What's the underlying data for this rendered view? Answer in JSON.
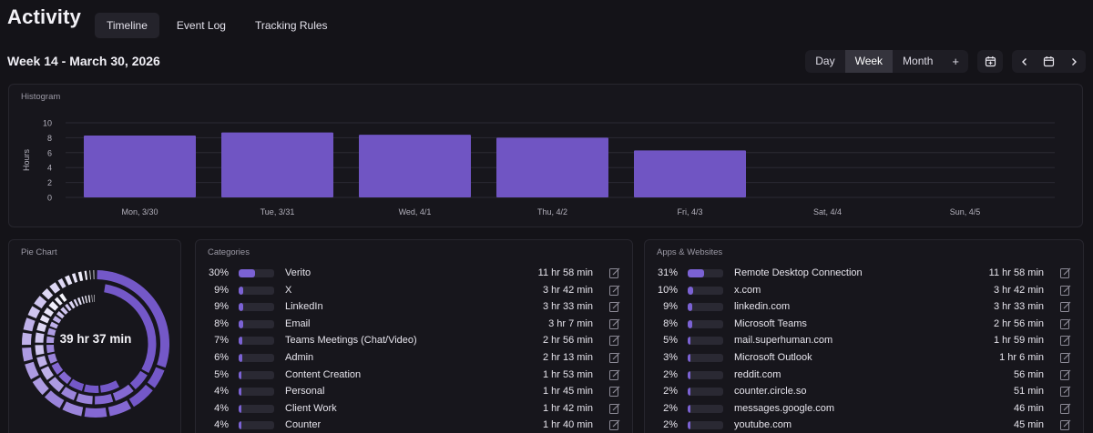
{
  "app": {
    "title": "Activity",
    "tabs": [
      {
        "label": "Timeline",
        "active": true
      },
      {
        "label": "Event Log",
        "active": false
      },
      {
        "label": "Tracking Rules",
        "active": false
      }
    ]
  },
  "header": {
    "week_title": "Week 14 - March 30, 2026",
    "ranges": [
      {
        "label": "Day",
        "active": false
      },
      {
        "label": "Week",
        "active": true
      },
      {
        "label": "Month",
        "active": false
      }
    ],
    "add_label": "+",
    "icons": [
      "calendar-add-icon",
      "chevron-left-icon",
      "calendar-icon",
      "chevron-right-icon"
    ]
  },
  "histogram": {
    "title": "Histogram"
  },
  "chart_data": {
    "type": "bar",
    "categories": [
      "Mon, 3/30",
      "Tue, 3/31",
      "Wed, 4/1",
      "Thu, 4/2",
      "Fri, 4/3",
      "Sat, 4/4",
      "Sun, 4/5"
    ],
    "values": [
      8.3,
      8.7,
      8.4,
      8.0,
      6.3,
      0,
      0
    ],
    "ylabel": "Hours",
    "ylim": [
      0,
      10
    ],
    "yticks": [
      0,
      2,
      4,
      6,
      8,
      10
    ],
    "grid": true,
    "color": "#7055c3"
  },
  "pie": {
    "title": "Pie Chart",
    "total": "39 hr 37 min"
  },
  "categories": {
    "title": "Categories",
    "rows": [
      {
        "pct": "30%",
        "value": 30,
        "name": "Verito",
        "duration": "11 hr 58 min"
      },
      {
        "pct": "9%",
        "value": 9,
        "name": "X",
        "duration": "3 hr 42 min"
      },
      {
        "pct": "9%",
        "value": 9,
        "name": "LinkedIn",
        "duration": "3 hr 33 min"
      },
      {
        "pct": "8%",
        "value": 8,
        "name": "Email",
        "duration": "3 hr 7 min"
      },
      {
        "pct": "7%",
        "value": 7,
        "name": "Teams Meetings (Chat/Video)",
        "duration": "2 hr 56 min"
      },
      {
        "pct": "6%",
        "value": 6,
        "name": "Admin",
        "duration": "2 hr 13 min"
      },
      {
        "pct": "5%",
        "value": 5,
        "name": "Content Creation",
        "duration": "1 hr 53 min"
      },
      {
        "pct": "4%",
        "value": 4,
        "name": "Personal",
        "duration": "1 hr 45 min"
      },
      {
        "pct": "4%",
        "value": 4,
        "name": "Client Work",
        "duration": "1 hr 42 min"
      },
      {
        "pct": "4%",
        "value": 4,
        "name": "Counter",
        "duration": "1 hr 40 min"
      }
    ]
  },
  "apps": {
    "title": "Apps & Websites",
    "rows": [
      {
        "pct": "31%",
        "value": 31,
        "name": "Remote Desktop Connection",
        "duration": "11 hr 58 min"
      },
      {
        "pct": "10%",
        "value": 10,
        "name": "x.com",
        "duration": "3 hr 42 min"
      },
      {
        "pct": "9%",
        "value": 9,
        "name": "linkedin.com",
        "duration": "3 hr 33 min"
      },
      {
        "pct": "8%",
        "value": 8,
        "name": "Microsoft Teams",
        "duration": "2 hr 56 min"
      },
      {
        "pct": "5%",
        "value": 5,
        "name": "mail.superhuman.com",
        "duration": "1 hr 59 min"
      },
      {
        "pct": "3%",
        "value": 3,
        "name": "Microsoft Outlook",
        "duration": "1 hr 6 min"
      },
      {
        "pct": "2%",
        "value": 2,
        "name": "reddit.com",
        "duration": "56 min"
      },
      {
        "pct": "2%",
        "value": 2,
        "name": "counter.circle.so",
        "duration": "51 min"
      },
      {
        "pct": "2%",
        "value": 2,
        "name": "messages.google.com",
        "duration": "46 min"
      },
      {
        "pct": "2%",
        "value": 2,
        "name": "youtube.com",
        "duration": "45 min"
      }
    ]
  }
}
